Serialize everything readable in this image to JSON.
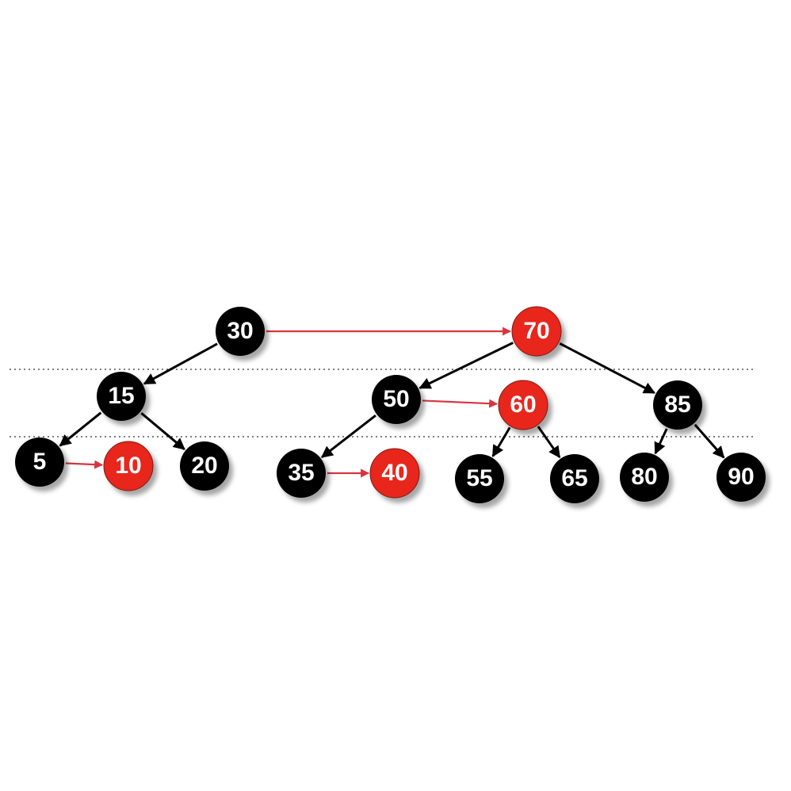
{
  "colors": {
    "black_node": "#000000",
    "red_node": "#e8261a",
    "red_edge": "#d9343f",
    "black_edge": "#000000",
    "dotted_line": "#333333",
    "label": "#ffffff"
  },
  "nodes": [
    {
      "id": "n30",
      "label": "30",
      "color": "black"
    },
    {
      "id": "n70",
      "label": "70",
      "color": "red"
    },
    {
      "id": "n15",
      "label": "15",
      "color": "black"
    },
    {
      "id": "n50",
      "label": "50",
      "color": "black"
    },
    {
      "id": "n60",
      "label": "60",
      "color": "red"
    },
    {
      "id": "n85",
      "label": "85",
      "color": "black"
    },
    {
      "id": "n5",
      "label": "5",
      "color": "black"
    },
    {
      "id": "n10",
      "label": "10",
      "color": "red"
    },
    {
      "id": "n20",
      "label": "20",
      "color": "black"
    },
    {
      "id": "n35",
      "label": "35",
      "color": "black"
    },
    {
      "id": "n40",
      "label": "40",
      "color": "red"
    },
    {
      "id": "n55",
      "label": "55",
      "color": "black"
    },
    {
      "id": "n65",
      "label": "65",
      "color": "black"
    },
    {
      "id": "n80",
      "label": "80",
      "color": "black"
    },
    {
      "id": "n90",
      "label": "90",
      "color": "black"
    }
  ],
  "edges": [
    {
      "from": "n30",
      "to": "n70",
      "type": "red"
    },
    {
      "from": "n30",
      "to": "n15",
      "type": "black"
    },
    {
      "from": "n70",
      "to": "n50",
      "type": "black"
    },
    {
      "from": "n70",
      "to": "n85",
      "type": "black"
    },
    {
      "from": "n15",
      "to": "n5",
      "type": "black"
    },
    {
      "from": "n15",
      "to": "n20",
      "type": "black"
    },
    {
      "from": "n5",
      "to": "n10",
      "type": "red"
    },
    {
      "from": "n50",
      "to": "n60",
      "type": "red"
    },
    {
      "from": "n50",
      "to": "n35",
      "type": "black"
    },
    {
      "from": "n35",
      "to": "n40",
      "type": "red"
    },
    {
      "from": "n60",
      "to": "n55",
      "type": "black"
    },
    {
      "from": "n60",
      "to": "n65",
      "type": "black"
    },
    {
      "from": "n85",
      "to": "n80",
      "type": "black"
    },
    {
      "from": "n85",
      "to": "n90",
      "type": "black"
    }
  ]
}
